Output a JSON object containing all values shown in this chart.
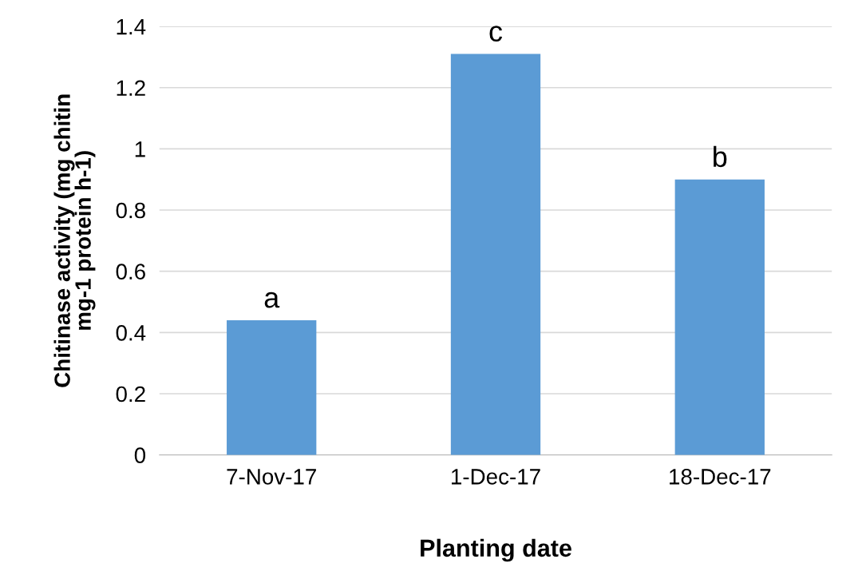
{
  "chart_data": {
    "type": "bar",
    "xlabel": "Planting date",
    "ylabel": "Chitinase activity (mg chitin\nmg-1 protein h-1)",
    "categories": [
      "7-Nov-17",
      "1-Dec-17",
      "18-Dec-17"
    ],
    "values": [
      0.44,
      1.31,
      0.9
    ],
    "color": "#5b9bd5",
    "ylim": [
      0,
      1.4
    ],
    "yticks": [
      0,
      0.2,
      0.4,
      0.6,
      0.8,
      1,
      1.2,
      1.4
    ],
    "grid": "y",
    "annotations": [
      {
        "text": "a",
        "x": "7-Nov-17",
        "y": 0.44
      },
      {
        "text": "c",
        "x": "1-Dec-17",
        "y": 1.31
      },
      {
        "text": "b",
        "x": "18-Dec-17",
        "y": 0.9
      }
    ]
  }
}
